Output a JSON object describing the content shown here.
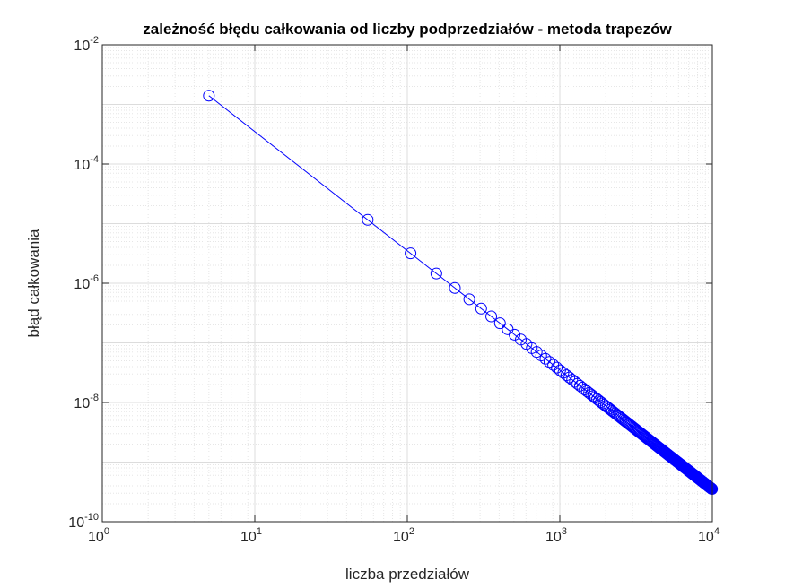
{
  "chart_data": {
    "type": "line",
    "title": "zależność błędu całkowania od liczby podprzedziałów - metoda trapezów",
    "xlabel": "liczba przedziałów",
    "ylabel": "błąd całkowania",
    "xscale": "log",
    "yscale": "log",
    "xlim": [
      1,
      10000
    ],
    "ylim": [
      1e-10,
      0.01
    ],
    "grid": true,
    "minor_grid": true,
    "x_ticks": [
      {
        "base": "10",
        "exp": "0"
      },
      {
        "base": "10",
        "exp": "1"
      },
      {
        "base": "10",
        "exp": "2"
      },
      {
        "base": "10",
        "exp": "3"
      },
      {
        "base": "10",
        "exp": "4"
      }
    ],
    "y_ticks": [
      {
        "base": "10",
        "exp": "-10"
      },
      {
        "base": "10",
        "exp": "-8"
      },
      {
        "base": "10",
        "exp": "-6"
      },
      {
        "base": "10",
        "exp": "-4"
      },
      {
        "base": "10",
        "exp": "-2"
      }
    ],
    "series": [
      {
        "color": "#0000ff",
        "marker": "circle",
        "x_start": 5,
        "x_step": 50,
        "x_end": 9955,
        "error_at_first_x": 0.0014,
        "error_decay": "proportional to 1/n^2"
      }
    ]
  }
}
